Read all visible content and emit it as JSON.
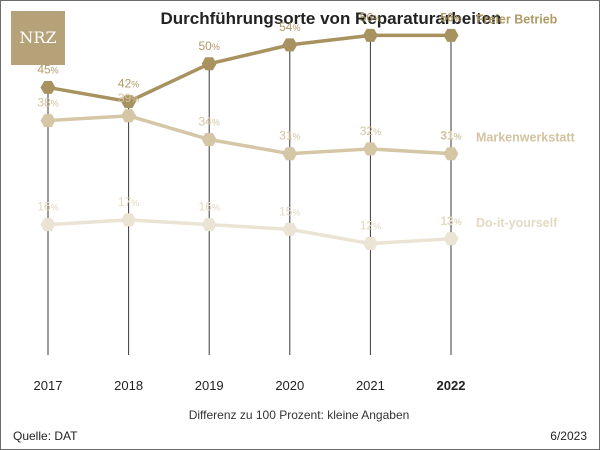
{
  "title": "Durchführungsorte von Reparaturarbeiten",
  "logo_text": "NRZ",
  "note": "Differenz zu 100 Prozent: kleine Angaben",
  "source": "Quelle: DAT",
  "date": "6/2023",
  "chart_data": {
    "type": "line",
    "title": "Durchführungsorte von Reparaturarbeiten",
    "x": [
      "2017",
      "2018",
      "2019",
      "2020",
      "2021",
      "2022"
    ],
    "highlight_x": "2022",
    "ylim": [
      0,
      60
    ],
    "unit": "%",
    "series": [
      {
        "name": "Freier Betrieb",
        "values": [
          45,
          42,
          50,
          54,
          56,
          56
        ],
        "color": "#a8925f",
        "label_color": "#b09a67"
      },
      {
        "name": "Markenwerkstatt",
        "values": [
          38,
          39,
          34,
          31,
          32,
          31
        ],
        "color": "#d5c6a6",
        "label_color": "#d3c3a0"
      },
      {
        "name": "Do-it-yourself",
        "values": [
          16,
          17,
          16,
          15,
          12,
          13
        ],
        "color": "#ebe3d3",
        "label_color": "#e4d9c3"
      }
    ]
  }
}
